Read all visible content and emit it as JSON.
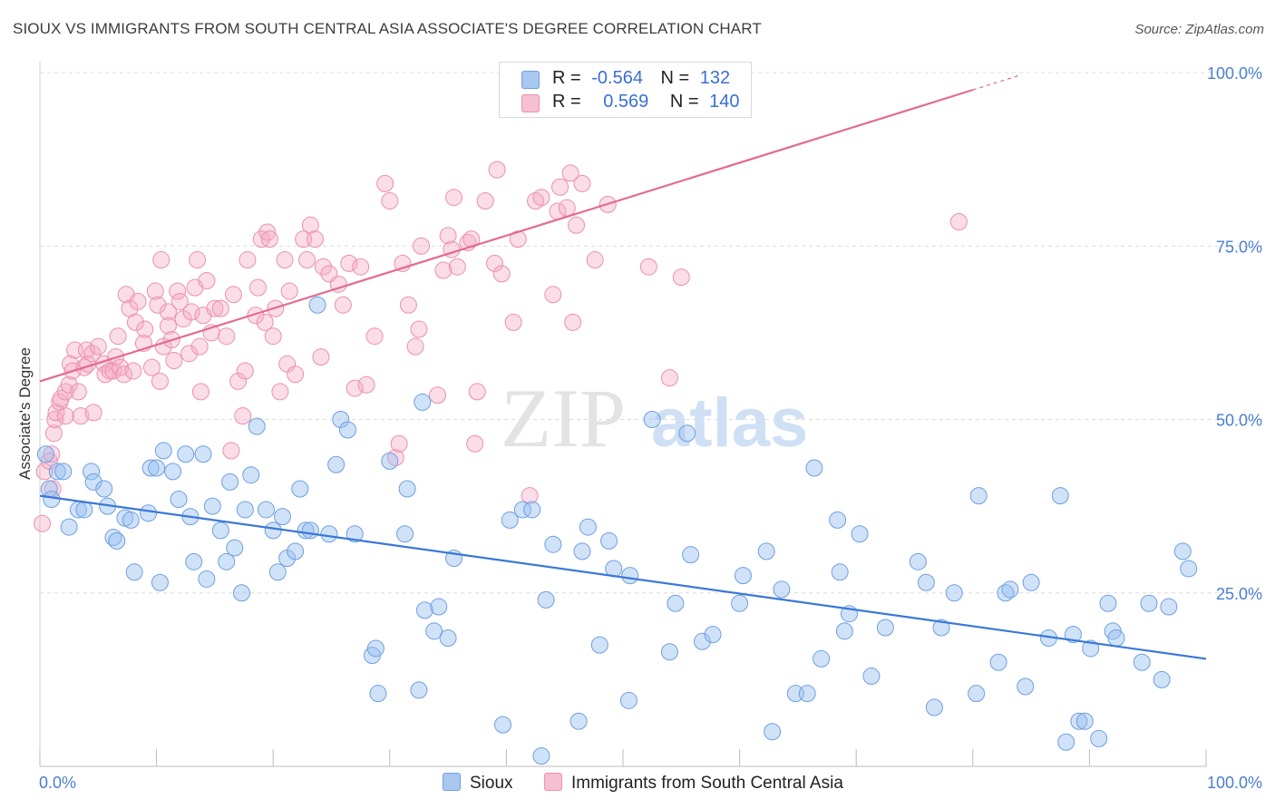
{
  "header": {
    "title": "SIOUX VS IMMIGRANTS FROM SOUTH CENTRAL ASIA ASSOCIATE'S DEGREE CORRELATION CHART",
    "source": "Source: ZipAtlas.com"
  },
  "watermark": {
    "zip": "ZIP",
    "atlas": "atlas"
  },
  "legend": {
    "rows": [
      {
        "r_label": "R =",
        "r_value": "-0.564",
        "n_label": "N =",
        "n_value": "132",
        "color": "#a9c8f0",
        "border": "#6f9fe0"
      },
      {
        "r_label": "R =",
        "r_value": "0.569",
        "n_label": "N =",
        "n_value": "140",
        "color": "#f7bfd2",
        "border": "#ee8fb0"
      }
    ]
  },
  "bottom_legend": {
    "sioux": "Sioux",
    "immigrants": "Immigrants from South Central Asia"
  },
  "colors": {
    "sioux_fill": "rgba(150,190,240,0.45)",
    "sioux_stroke": "#6f9fe0",
    "sioux_line": "#3a78d6",
    "imm_fill": "rgba(245,170,195,0.40)",
    "imm_stroke": "#ec8fb0",
    "imm_line": "#e36a94",
    "grid": "#dcdcdc",
    "tick_text": "#4a7fd0"
  },
  "chart_data": {
    "type": "scatter",
    "title": "SIOUX VS IMMIGRANTS FROM SOUTH CENTRAL ASIA ASSOCIATE'S DEGREE CORRELATION CHART",
    "xlabel": "",
    "ylabel": "Associate's Degree",
    "xlim": [
      0,
      100
    ],
    "ylim": [
      0,
      100
    ],
    "x_tick_labels": [
      "0.0%",
      "100.0%"
    ],
    "y_tick_labels": [
      "25.0%",
      "50.0%",
      "75.0%",
      "100.0%"
    ],
    "y_ticks": [
      25,
      50,
      75,
      100
    ],
    "grid": true,
    "legend_position": "top-center",
    "series": [
      {
        "name": "Sioux",
        "trend": {
          "x": [
            0,
            100
          ],
          "y": [
            39,
            15.5
          ]
        },
        "points": [
          [
            0.5,
            45
          ],
          [
            0.8,
            40
          ],
          [
            1,
            38.5
          ],
          [
            1.5,
            42.5
          ],
          [
            2,
            42.5
          ],
          [
            2.5,
            34.5
          ],
          [
            3.3,
            37
          ],
          [
            3.8,
            37
          ],
          [
            4.4,
            42.5
          ],
          [
            4.6,
            41
          ],
          [
            5.5,
            40
          ],
          [
            5.8,
            37.5
          ],
          [
            6.3,
            33
          ],
          [
            6.6,
            32.5
          ],
          [
            7.3,
            35.8
          ],
          [
            7.8,
            35.5
          ],
          [
            8.1,
            28
          ],
          [
            9.3,
            36.5
          ],
          [
            9.5,
            43
          ],
          [
            10,
            43
          ],
          [
            10.3,
            26.5
          ],
          [
            10.6,
            45.5
          ],
          [
            11.4,
            42.5
          ],
          [
            11.9,
            38.5
          ],
          [
            12.5,
            45
          ],
          [
            12.9,
            36
          ],
          [
            13.2,
            29.5
          ],
          [
            14,
            45
          ],
          [
            14.3,
            27
          ],
          [
            14.8,
            37.5
          ],
          [
            15.5,
            34
          ],
          [
            16,
            29.5
          ],
          [
            16.3,
            41
          ],
          [
            16.7,
            31.5
          ],
          [
            17.3,
            25
          ],
          [
            17.6,
            37
          ],
          [
            18.1,
            42
          ],
          [
            18.6,
            49
          ],
          [
            19.4,
            37
          ],
          [
            20,
            34
          ],
          [
            20.4,
            28
          ],
          [
            20.8,
            36
          ],
          [
            21.2,
            30
          ],
          [
            21.9,
            31
          ],
          [
            22.3,
            40
          ],
          [
            22.8,
            34
          ],
          [
            23.2,
            34
          ],
          [
            23.8,
            66.5
          ],
          [
            24.8,
            33.5
          ],
          [
            25.4,
            43.5
          ],
          [
            25.8,
            50
          ],
          [
            26.4,
            48.5
          ],
          [
            27,
            33.5
          ],
          [
            28.5,
            16
          ],
          [
            28.8,
            17
          ],
          [
            29,
            10.5
          ],
          [
            30,
            44
          ],
          [
            31.3,
            33.5
          ],
          [
            31.5,
            40
          ],
          [
            32.5,
            11
          ],
          [
            32.8,
            52.5
          ],
          [
            33,
            22.5
          ],
          [
            33.8,
            19.5
          ],
          [
            34.2,
            23
          ],
          [
            35,
            18.5
          ],
          [
            35.5,
            30
          ],
          [
            39.7,
            6
          ],
          [
            40.3,
            35.5
          ],
          [
            41.4,
            37
          ],
          [
            42.2,
            37
          ],
          [
            43,
            1.5
          ],
          [
            43.4,
            24
          ],
          [
            44,
            32
          ],
          [
            46.2,
            6.5
          ],
          [
            46.5,
            31
          ],
          [
            47,
            34.5
          ],
          [
            48,
            17.5
          ],
          [
            48.8,
            32.5
          ],
          [
            49.2,
            28.5
          ],
          [
            50.5,
            9.5
          ],
          [
            50.6,
            27.5
          ],
          [
            52.5,
            50
          ],
          [
            54,
            16.5
          ],
          [
            54.5,
            23.5
          ],
          [
            55.5,
            48
          ],
          [
            55.8,
            30.5
          ],
          [
            56.8,
            18
          ],
          [
            57.7,
            19
          ],
          [
            60,
            23.5
          ],
          [
            60.3,
            27.5
          ],
          [
            62.3,
            31
          ],
          [
            62.8,
            5
          ],
          [
            63.6,
            25.5
          ],
          [
            64.8,
            10.5
          ],
          [
            65.8,
            10.5
          ],
          [
            66.4,
            43
          ],
          [
            67,
            15.5
          ],
          [
            68.4,
            35.5
          ],
          [
            68.6,
            28
          ],
          [
            69,
            19.5
          ],
          [
            69.4,
            22
          ],
          [
            70.3,
            33.5
          ],
          [
            71.3,
            13
          ],
          [
            72.5,
            20
          ],
          [
            75.3,
            29.5
          ],
          [
            76,
            26.5
          ],
          [
            76.7,
            8.5
          ],
          [
            77.3,
            20
          ],
          [
            78.4,
            25
          ],
          [
            80.3,
            10.5
          ],
          [
            80.5,
            39
          ],
          [
            82.2,
            15
          ],
          [
            82.8,
            25
          ],
          [
            83.2,
            25.5
          ],
          [
            84.5,
            11.5
          ],
          [
            85,
            26.5
          ],
          [
            86.5,
            18.5
          ],
          [
            87.5,
            39
          ],
          [
            88,
            3.5
          ],
          [
            88.6,
            19
          ],
          [
            89.1,
            6.5
          ],
          [
            89.6,
            6.5
          ],
          [
            90.1,
            17
          ],
          [
            90.8,
            4
          ],
          [
            91.6,
            23.5
          ],
          [
            92,
            19.5
          ],
          [
            92.3,
            18.5
          ],
          [
            94.5,
            15
          ],
          [
            95.1,
            23.5
          ],
          [
            96.2,
            12.5
          ],
          [
            96.8,
            23
          ],
          [
            98,
            31
          ],
          [
            98.5,
            28.5
          ]
        ]
      },
      {
        "name": "Immigrants from South Central Asia",
        "trend": {
          "x": [
            0,
            80
          ],
          "y": [
            55.5,
            97.5
          ]
        },
        "points": [
          [
            0.2,
            35
          ],
          [
            0.4,
            42.5
          ],
          [
            0.8,
            44
          ],
          [
            1,
            45
          ],
          [
            1.1,
            40
          ],
          [
            1.2,
            48
          ],
          [
            1.3,
            50
          ],
          [
            1.4,
            51
          ],
          [
            1.7,
            52.5
          ],
          [
            1.8,
            53
          ],
          [
            2.2,
            50.5
          ],
          [
            2.2,
            54
          ],
          [
            2.5,
            55
          ],
          [
            2.6,
            58
          ],
          [
            2.8,
            57
          ],
          [
            3,
            60
          ],
          [
            3.3,
            54
          ],
          [
            3.5,
            50.5
          ],
          [
            3.8,
            57.5
          ],
          [
            4,
            60
          ],
          [
            4.1,
            58
          ],
          [
            4.5,
            59.5
          ],
          [
            4.6,
            51
          ],
          [
            5,
            60.5
          ],
          [
            5.5,
            58
          ],
          [
            5.6,
            56.5
          ],
          [
            6,
            57
          ],
          [
            6.3,
            57
          ],
          [
            6.5,
            59
          ],
          [
            6.7,
            62
          ],
          [
            6.9,
            57.5
          ],
          [
            7.2,
            56.5
          ],
          [
            7.4,
            68
          ],
          [
            7.7,
            66
          ],
          [
            8,
            57
          ],
          [
            8.2,
            64
          ],
          [
            8.4,
            67
          ],
          [
            8.9,
            61
          ],
          [
            9,
            63
          ],
          [
            9.6,
            57.5
          ],
          [
            9.9,
            68.5
          ],
          [
            10.1,
            66.5
          ],
          [
            10.3,
            55.5
          ],
          [
            10.4,
            73
          ],
          [
            10.6,
            60.5
          ],
          [
            11,
            65.5
          ],
          [
            11,
            63.5
          ],
          [
            11.3,
            61.5
          ],
          [
            11.5,
            58.5
          ],
          [
            11.8,
            68.5
          ],
          [
            12,
            67
          ],
          [
            12.3,
            64.5
          ],
          [
            12.8,
            59.5
          ],
          [
            13,
            65.5
          ],
          [
            13.3,
            69
          ],
          [
            13.5,
            73
          ],
          [
            13.7,
            60.5
          ],
          [
            13.8,
            54
          ],
          [
            14,
            65
          ],
          [
            14.3,
            70
          ],
          [
            14.7,
            62.5
          ],
          [
            15,
            66
          ],
          [
            15.5,
            66
          ],
          [
            16,
            62
          ],
          [
            16.4,
            45.5
          ],
          [
            16.6,
            68
          ],
          [
            17,
            55.5
          ],
          [
            17.4,
            50.5
          ],
          [
            17.6,
            57
          ],
          [
            17.8,
            73
          ],
          [
            18.5,
            65
          ],
          [
            18.7,
            69
          ],
          [
            19,
            76
          ],
          [
            19.3,
            64
          ],
          [
            19.5,
            77
          ],
          [
            19.7,
            76
          ],
          [
            20,
            62
          ],
          [
            20.2,
            66
          ],
          [
            20.6,
            54
          ],
          [
            21,
            73
          ],
          [
            21.2,
            58
          ],
          [
            21.4,
            68.5
          ],
          [
            21.9,
            56.5
          ],
          [
            22.6,
            76
          ],
          [
            22.9,
            73
          ],
          [
            23.2,
            78
          ],
          [
            23.6,
            76
          ],
          [
            24.1,
            59
          ],
          [
            24.3,
            72
          ],
          [
            24.8,
            71
          ],
          [
            25.6,
            69.5
          ],
          [
            26,
            66.5
          ],
          [
            26.5,
            72.5
          ],
          [
            27,
            54.5
          ],
          [
            27.5,
            72
          ],
          [
            28,
            55
          ],
          [
            28.7,
            62
          ],
          [
            29.6,
            84
          ],
          [
            30,
            81.5
          ],
          [
            30.5,
            44.5
          ],
          [
            30.8,
            46.5
          ],
          [
            31.1,
            72.5
          ],
          [
            31.6,
            66.5
          ],
          [
            32.2,
            60.5
          ],
          [
            32.5,
            63
          ],
          [
            32.7,
            75
          ],
          [
            34.1,
            53.5
          ],
          [
            34.6,
            71.5
          ],
          [
            35,
            76.5
          ],
          [
            35.3,
            74.5
          ],
          [
            35.5,
            82
          ],
          [
            35.8,
            72
          ],
          [
            36.7,
            75.5
          ],
          [
            37,
            76
          ],
          [
            37.3,
            46.5
          ],
          [
            37.5,
            54
          ],
          [
            38.2,
            81.5
          ],
          [
            39,
            72.5
          ],
          [
            39.2,
            86
          ],
          [
            39.6,
            71
          ],
          [
            40.6,
            64
          ],
          [
            41,
            76
          ],
          [
            42,
            39
          ],
          [
            42.5,
            81.5
          ],
          [
            43,
            82
          ],
          [
            44,
            68
          ],
          [
            44.4,
            80
          ],
          [
            44.6,
            83.5
          ],
          [
            45.2,
            80.5
          ],
          [
            45.5,
            85.5
          ],
          [
            45.7,
            64
          ],
          [
            46,
            78
          ],
          [
            46.5,
            84
          ],
          [
            47.6,
            73
          ],
          [
            48.7,
            81
          ],
          [
            52.2,
            72
          ],
          [
            54,
            56
          ],
          [
            55,
            70.5
          ],
          [
            78.8,
            78.5
          ]
        ]
      }
    ]
  }
}
